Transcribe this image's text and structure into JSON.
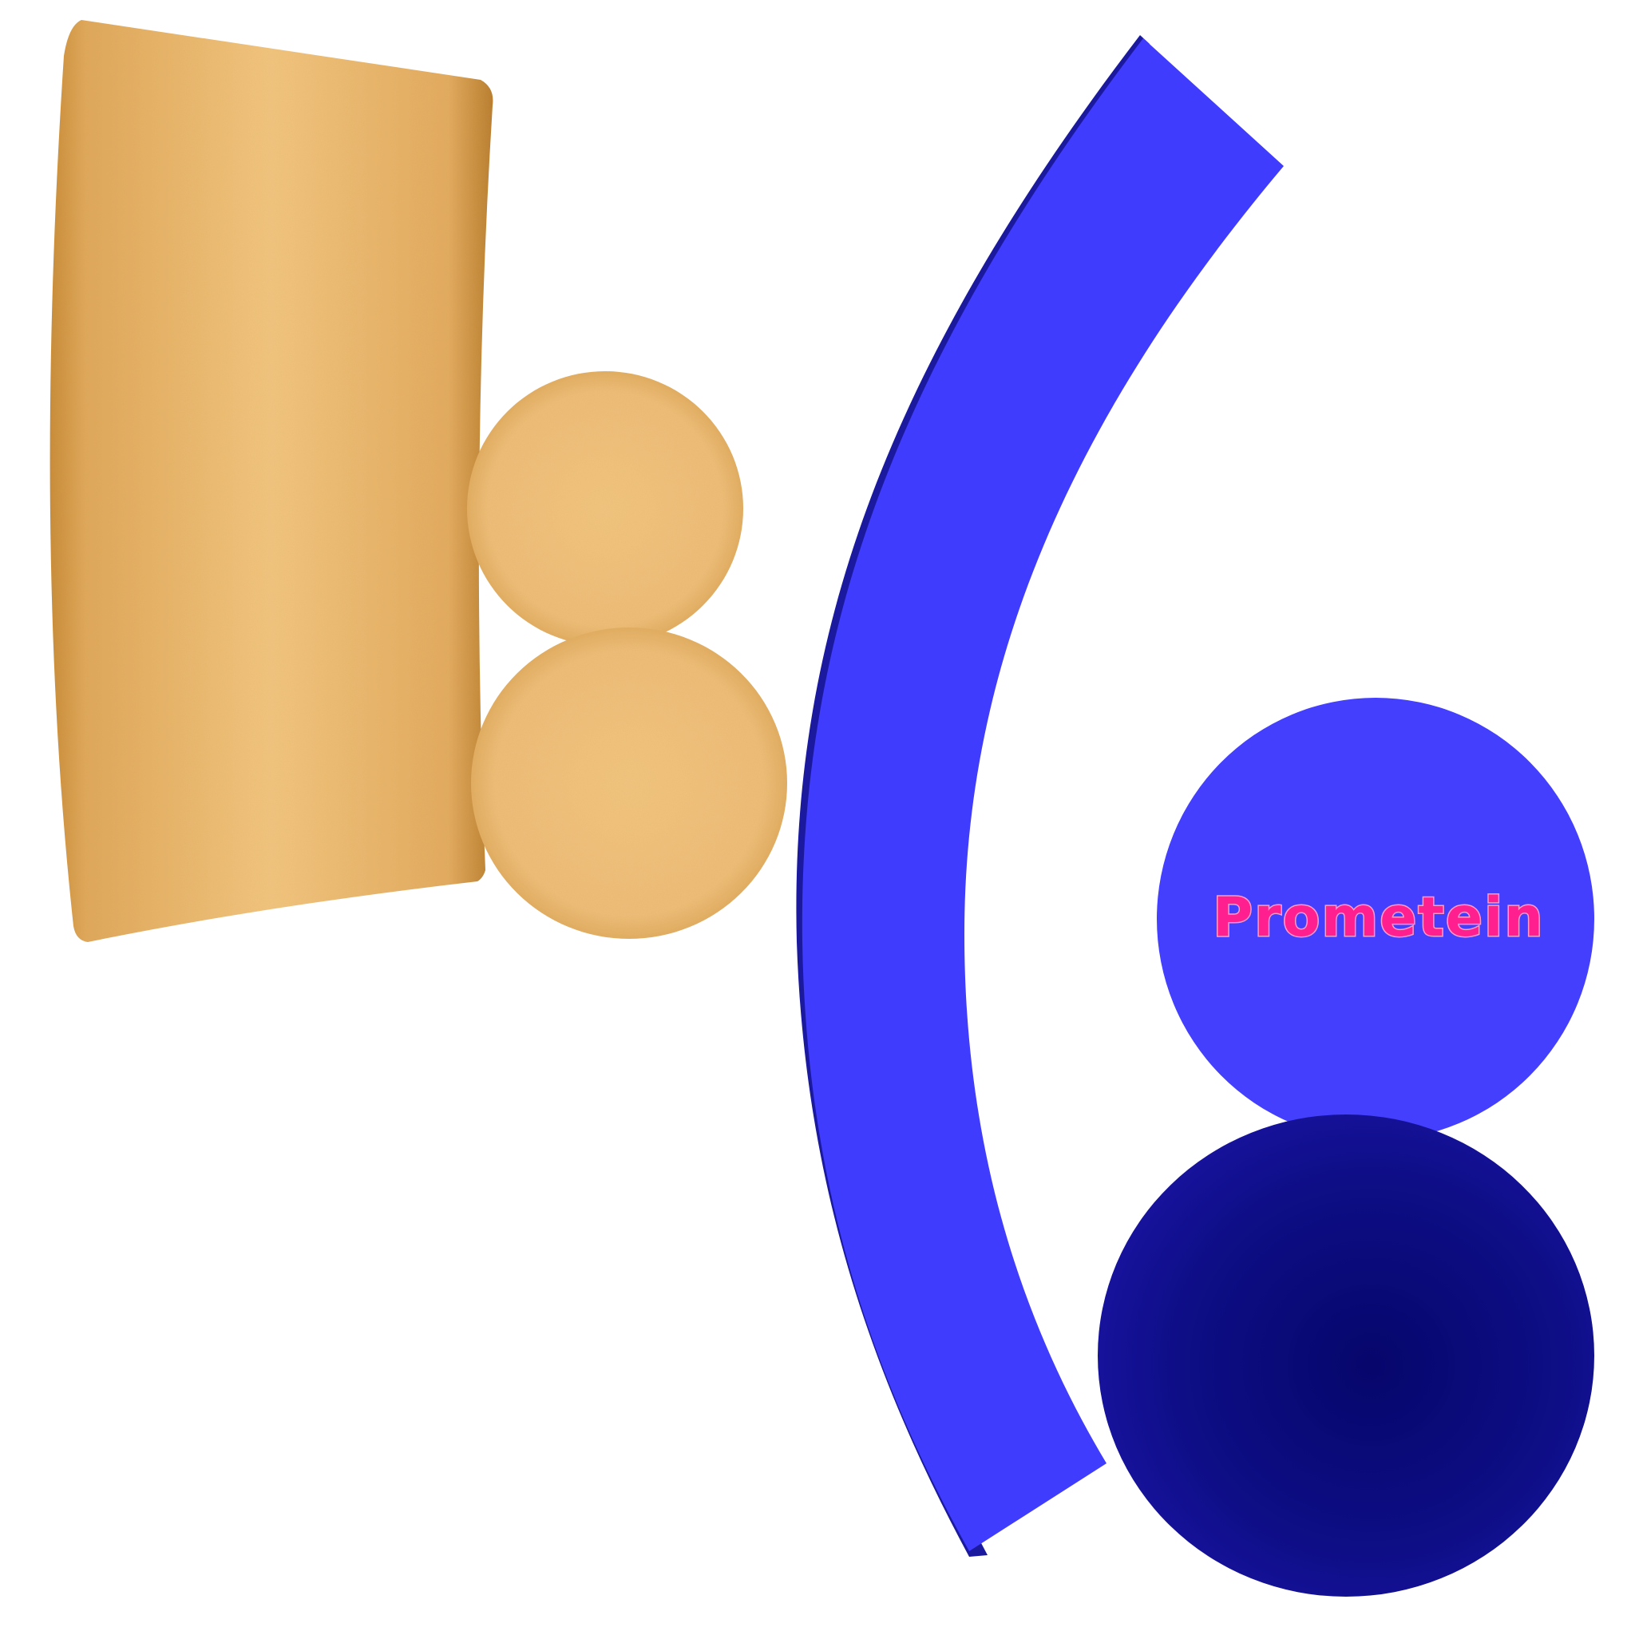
{
  "label": {
    "text": "Prometein"
  },
  "colors": {
    "background": "#ffffff",
    "gold_light": "#f3c57f",
    "gold_mid": "#e8b164",
    "gold_dark": "#c98a35",
    "arc_blue": "#403cfd",
    "arc_edge": "#1b1a9e",
    "circle_blue": "#433ffd",
    "navy_center": "#07076e",
    "navy_edge": "#16129b",
    "label_fill": "#ff1f8e",
    "label_stroke": "#ff9acb"
  }
}
